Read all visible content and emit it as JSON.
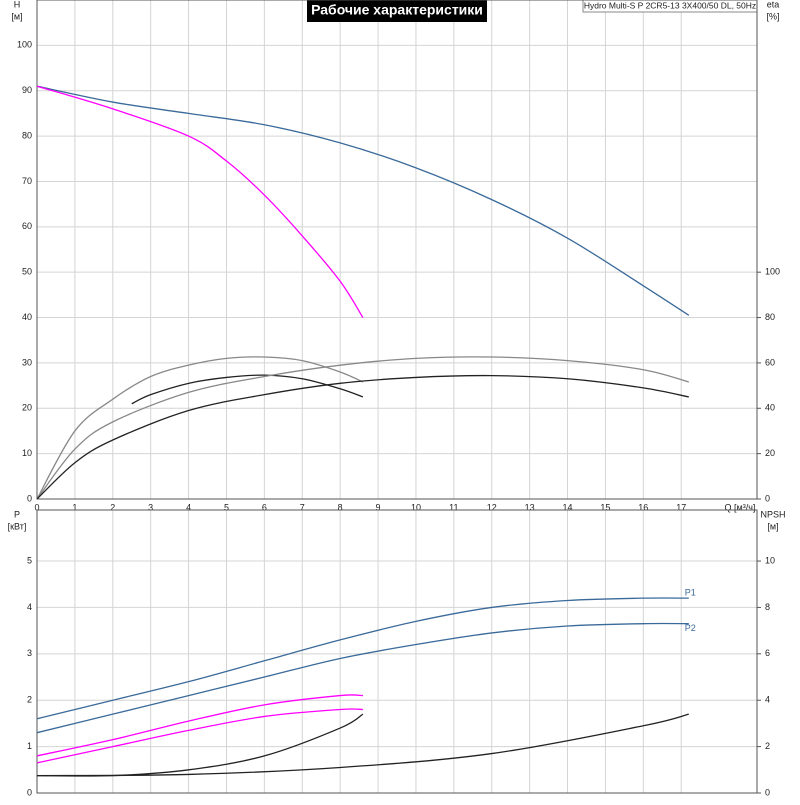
{
  "title": "Рабочие характеристики",
  "subtitle": "Hydro Multi-S P 2CR5-13 3X400/50 DL, 50Hz",
  "chart_data": [
    {
      "type": "line",
      "ylabel": "H",
      "yunit": "[м]",
      "y2label": "eta",
      "y2unit": "[%]",
      "xlabel": "Q [м³/ч]",
      "xlim": [
        0,
        19
      ],
      "xticks": [
        0,
        1,
        2,
        3,
        4,
        5,
        6,
        7,
        8,
        9,
        10,
        11,
        12,
        13,
        14,
        15,
        16,
        17
      ],
      "ylim": [
        0,
        110
      ],
      "yticks": [
        0,
        10,
        20,
        30,
        40,
        50,
        60,
        70,
        80,
        90,
        100
      ],
      "y2lim": [
        0,
        220
      ],
      "y2ticks": [
        0,
        20,
        40,
        60,
        80,
        100
      ],
      "grid": true,
      "series": [
        {
          "color": "#3a6a9a",
          "x": [
            0,
            2,
            4,
            6,
            8,
            10,
            12,
            14,
            16,
            17.2
          ],
          "values": [
            91,
            87.5,
            85,
            82.5,
            78.5,
            73,
            66,
            57.5,
            47,
            40.5
          ]
        },
        {
          "color": "#ff00ff",
          "x": [
            0,
            2,
            4,
            5,
            6,
            7,
            8,
            8.6
          ],
          "values": [
            91,
            86,
            80,
            74.5,
            67,
            58,
            48,
            40
          ]
        },
        {
          "color": "#888888",
          "axis": "y2",
          "x": [
            0,
            1,
            2,
            3,
            4,
            5,
            6,
            7,
            8,
            8.6
          ],
          "values": [
            0,
            30,
            44,
            54,
            59,
            62,
            62.6,
            61,
            56,
            51.6
          ]
        },
        {
          "color": "#222222",
          "axis": "y2",
          "x": [
            2.5,
            3,
            4,
            5,
            6,
            7,
            8,
            8.6
          ],
          "values": [
            42,
            46,
            51,
            53.6,
            54.6,
            53,
            48.6,
            45
          ]
        },
        {
          "color": "#888888",
          "axis": "y2",
          "x": [
            0,
            1,
            2,
            4,
            6,
            8,
            10,
            12,
            14,
            16,
            17.2
          ],
          "values": [
            0,
            22,
            34,
            47,
            54,
            59,
            62,
            62.6,
            61,
            57,
            51.6
          ]
        },
        {
          "color": "#222222",
          "axis": "y2",
          "x": [
            0,
            1,
            2,
            4,
            6,
            8,
            10,
            12,
            14,
            16,
            17.2
          ],
          "values": [
            0,
            16,
            26,
            39,
            46,
            51,
            53.6,
            54.4,
            53,
            49,
            45
          ]
        }
      ]
    },
    {
      "type": "line",
      "ylabel": "P",
      "yunit": "[кВт]",
      "y2label": "NPSH",
      "y2unit": "[м]",
      "ylim": [
        0,
        6.1
      ],
      "yticks": [
        0,
        1,
        2,
        3,
        4,
        5
      ],
      "y2lim": [
        0,
        12.2
      ],
      "y2ticks": [
        0,
        2,
        4,
        6,
        8,
        10
      ],
      "grid": true,
      "series": [
        {
          "name": "P1",
          "color": "#3a6a9a",
          "x": [
            0,
            2,
            4,
            6,
            8,
            10,
            12,
            14,
            16,
            17.2
          ],
          "values": [
            1.6,
            2.0,
            2.4,
            2.85,
            3.3,
            3.7,
            4.0,
            4.15,
            4.2,
            4.2
          ]
        },
        {
          "name": "P2",
          "color": "#3a6a9a",
          "x": [
            0,
            2,
            4,
            6,
            8,
            10,
            12,
            14,
            16,
            17.2
          ],
          "values": [
            1.3,
            1.7,
            2.1,
            2.5,
            2.9,
            3.2,
            3.45,
            3.6,
            3.65,
            3.65
          ]
        },
        {
          "color": "#ff00ff",
          "x": [
            0,
            2,
            4,
            6,
            8,
            8.6
          ],
          "values": [
            0.8,
            1.15,
            1.55,
            1.9,
            2.1,
            2.1
          ]
        },
        {
          "color": "#ff00ff",
          "x": [
            0,
            2,
            4,
            6,
            8,
            8.6
          ],
          "values": [
            0.65,
            1.0,
            1.35,
            1.65,
            1.8,
            1.8
          ]
        },
        {
          "color": "#222222",
          "axis": "y2",
          "x": [
            0,
            2,
            4,
            6,
            8,
            8.6
          ],
          "values": [
            0.75,
            0.75,
            1.0,
            1.6,
            2.8,
            3.4
          ]
        },
        {
          "color": "#222222",
          "axis": "y2",
          "x": [
            0,
            4,
            8,
            12,
            16,
            17.2
          ],
          "values": [
            0.75,
            0.8,
            1.1,
            1.7,
            2.9,
            3.4
          ]
        }
      ]
    }
  ]
}
